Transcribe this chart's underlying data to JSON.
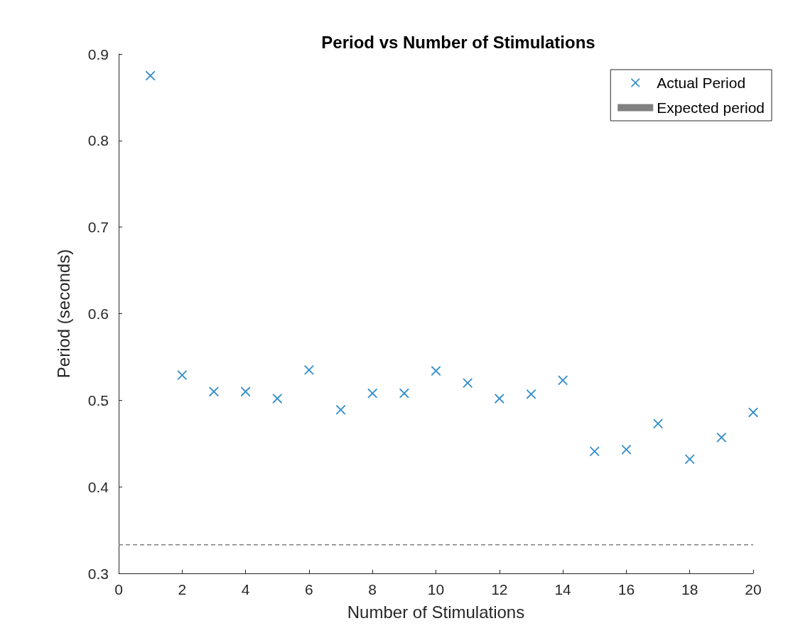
{
  "chart_data": {
    "type": "scatter",
    "title": "Period vs Number of Stimulations",
    "xlabel": "Number of Stimulations",
    "ylabel": "Period (seconds)",
    "x": [
      1,
      2,
      3,
      4,
      5,
      6,
      7,
      8,
      9,
      10,
      11,
      12,
      13,
      14,
      15,
      16,
      17,
      18,
      19,
      20
    ],
    "series": [
      {
        "name": "Actual Period",
        "color": "#0072bd",
        "values": [
          0.875,
          0.529,
          0.51,
          0.51,
          0.502,
          0.535,
          0.489,
          0.508,
          0.508,
          0.534,
          0.52,
          0.502,
          0.507,
          0.523,
          0.441,
          0.443,
          0.473,
          0.432,
          0.457,
          0.486
        ]
      }
    ],
    "marker": "cross",
    "xlim": [
      0,
      20
    ],
    "xticks": [
      0,
      2,
      4,
      6,
      8,
      10,
      12,
      14,
      16,
      18,
      20
    ],
    "ylim": [
      0.3,
      0.9
    ],
    "yticks": [
      0.3,
      0.4,
      0.5,
      0.6,
      0.7,
      0.8,
      0.9
    ],
    "ref_lines": [
      {
        "axis": "y",
        "value": 0.333,
        "label": "Expected period",
        "color": "#808080",
        "line_style": "dashed"
      }
    ],
    "grid": false,
    "legend": "top right"
  }
}
